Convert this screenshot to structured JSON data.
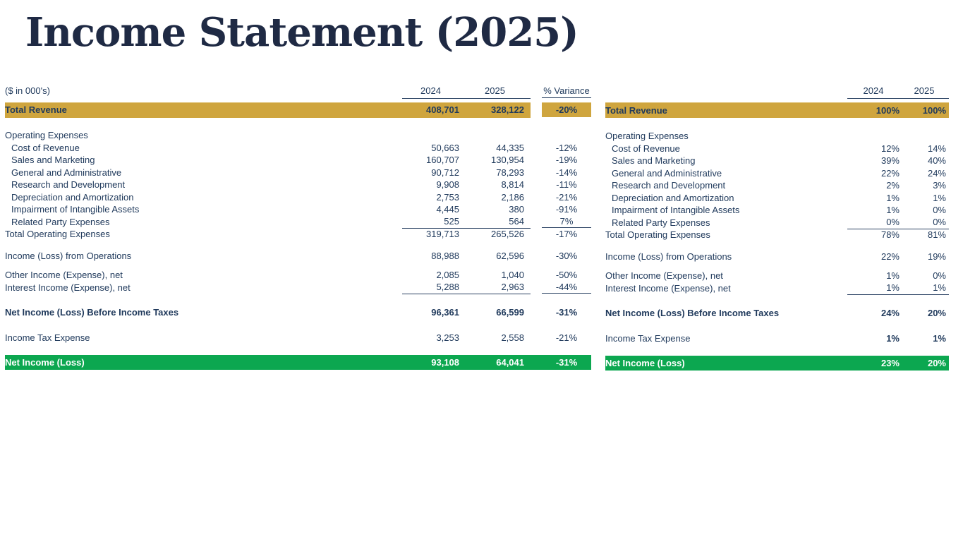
{
  "title": "Income Statement (2025)",
  "colors": {
    "highlight_bar_gold": "#CFA53E",
    "net_income_bar_green": "#0CA750",
    "body_text_navy": "#203A5C",
    "title_navy": "#1F2A44"
  },
  "left_table": {
    "units_note": "($ in 000's)",
    "col_2024": "2024",
    "col_2025": "2025",
    "col_variance": "% Variance",
    "total_revenue": {
      "label": "Total Revenue",
      "y2024": "408,701",
      "y2025": "328,122",
      "variance": "-20%"
    },
    "section_operating_expenses": "Operating Expenses",
    "expense_rows": [
      {
        "label": "Cost of Revenue",
        "y2024": "50,663",
        "y2025": "44,335",
        "variance": "-12%"
      },
      {
        "label": "Sales and Marketing",
        "y2024": "160,707",
        "y2025": "130,954",
        "variance": "-19%"
      },
      {
        "label": "General and Administrative",
        "y2024": "90,712",
        "y2025": "78,293",
        "variance": "-14%"
      },
      {
        "label": "Research and Development",
        "y2024": "9,908",
        "y2025": "8,814",
        "variance": "-11%"
      },
      {
        "label": "Depreciation and Amortization",
        "y2024": "2,753",
        "y2025": "2,186",
        "variance": "-21%"
      },
      {
        "label": "Impairment of Intangible Assets",
        "y2024": "4,445",
        "y2025": "380",
        "variance": "-91%"
      },
      {
        "label": "Related Party Expenses",
        "y2024": "525",
        "y2025": "564",
        "variance": "7%"
      }
    ],
    "total_operating_expenses": {
      "label": "Total Operating Expenses",
      "y2024": "319,713",
      "y2025": "265,526",
      "variance": "-17%"
    },
    "income_from_operations": {
      "label": "Income (Loss) from Operations",
      "y2024": "88,988",
      "y2025": "62,596",
      "variance": "-30%"
    },
    "other_income": {
      "label": "Other Income (Expense), net",
      "y2024": "2,085",
      "y2025": "1,040",
      "variance": "-50%"
    },
    "interest_income": {
      "label": "Interest Income (Expense), net",
      "y2024": "5,288",
      "y2025": "2,963",
      "variance": "-44%"
    },
    "net_income_before_taxes": {
      "label": "Net Income (Loss) Before Income Taxes",
      "y2024": "96,361",
      "y2025": "66,599",
      "variance": "-31%"
    },
    "income_tax_expense": {
      "label": "Income Tax Expense",
      "y2024": "3,253",
      "y2025": "2,558",
      "variance": "-21%"
    },
    "net_income": {
      "label": "Net Income (Loss)",
      "y2024": "93,108",
      "y2025": "64,041",
      "variance": "-31%"
    }
  },
  "right_table": {
    "col_2024": "2024",
    "col_2025": "2025",
    "total_revenue": {
      "label": "Total Revenue",
      "y2024": "100%",
      "y2025": "100%"
    },
    "section_operating_expenses": "Operating Expenses",
    "expense_rows": [
      {
        "label": "Cost of Revenue",
        "y2024": "12%",
        "y2025": "14%"
      },
      {
        "label": "Sales and Marketing",
        "y2024": "39%",
        "y2025": "40%"
      },
      {
        "label": "General and Administrative",
        "y2024": "22%",
        "y2025": "24%"
      },
      {
        "label": "Research and Development",
        "y2024": "2%",
        "y2025": "3%"
      },
      {
        "label": "Depreciation and Amortization",
        "y2024": "1%",
        "y2025": "1%"
      },
      {
        "label": "Impairment of Intangible Assets",
        "y2024": "1%",
        "y2025": "0%"
      },
      {
        "label": "Related Party Expenses",
        "y2024": "0%",
        "y2025": "0%"
      }
    ],
    "total_operating_expenses": {
      "label": "Total Operating Expenses",
      "y2024": "78%",
      "y2025": "81%"
    },
    "income_from_operations": {
      "label": "Income (Loss) from Operations",
      "y2024": "22%",
      "y2025": "19%"
    },
    "other_income": {
      "label": "Other Income (Expense), net",
      "y2024": "1%",
      "y2025": "0%"
    },
    "interest_income": {
      "label": "Interest Income (Expense), net",
      "y2024": "1%",
      "y2025": "1%"
    },
    "net_income_before_taxes": {
      "label": "Net Income (Loss) Before Income Taxes",
      "y2024": "24%",
      "y2025": "20%"
    },
    "income_tax_expense": {
      "label": "Income Tax Expense",
      "y2024": "1%",
      "y2025": "1%"
    },
    "net_income": {
      "label": "Net Income (Loss)",
      "y2024": "23%",
      "y2025": "20%"
    }
  }
}
